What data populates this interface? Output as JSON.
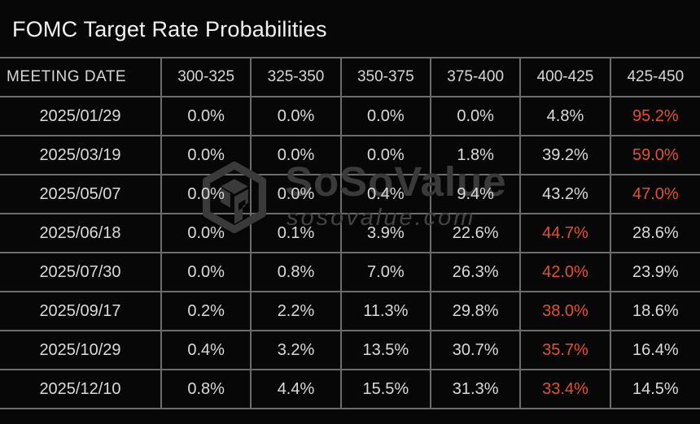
{
  "page_title": "FOMC Target Rate Probabilities",
  "watermark": {
    "brand": "SoSoValue",
    "domain_text": "sosovalue.com",
    "logo_icon": "sosovalue-cube-icon"
  },
  "colors": {
    "background": "#070707",
    "grid_border": "#6c6c6c",
    "title_text": "#f2f2f2",
    "header_text": "#d6d6d4",
    "cell_text": "#dadad8",
    "highlight_text": "#e4512d",
    "watermark_gray": "#3a3a3a"
  },
  "chart_data": {
    "type": "table",
    "title": "FOMC Target Rate Probabilities",
    "columns": [
      "MEETING DATE",
      "300-325",
      "325-350",
      "350-375",
      "375-400",
      "400-425",
      "425-450"
    ],
    "rows": [
      {
        "cells": [
          "2025/01/29",
          "0.0%",
          "0.0%",
          "0.0%",
          "0.0%",
          "4.8%",
          "95.2%"
        ],
        "highlight_index": 6
      },
      {
        "cells": [
          "2025/03/19",
          "0.0%",
          "0.0%",
          "0.0%",
          "1.8%",
          "39.2%",
          "59.0%"
        ],
        "highlight_index": 6
      },
      {
        "cells": [
          "2025/05/07",
          "0.0%",
          "0.0%",
          "0.4%",
          "9.4%",
          "43.2%",
          "47.0%"
        ],
        "highlight_index": 6
      },
      {
        "cells": [
          "2025/06/18",
          "0.0%",
          "0.1%",
          "3.9%",
          "22.6%",
          "44.7%",
          "28.6%"
        ],
        "highlight_index": 5
      },
      {
        "cells": [
          "2025/07/30",
          "0.0%",
          "0.8%",
          "7.0%",
          "26.3%",
          "42.0%",
          "23.9%"
        ],
        "highlight_index": 5
      },
      {
        "cells": [
          "2025/09/17",
          "0.2%",
          "2.2%",
          "11.3%",
          "29.8%",
          "38.0%",
          "18.6%"
        ],
        "highlight_index": 5
      },
      {
        "cells": [
          "2025/10/29",
          "0.4%",
          "3.2%",
          "13.5%",
          "30.7%",
          "35.7%",
          "16.4%"
        ],
        "highlight_index": 5
      },
      {
        "cells": [
          "2025/12/10",
          "0.8%",
          "4.4%",
          "15.5%",
          "31.3%",
          "33.4%",
          "14.5%"
        ],
        "highlight_index": 5
      }
    ]
  }
}
